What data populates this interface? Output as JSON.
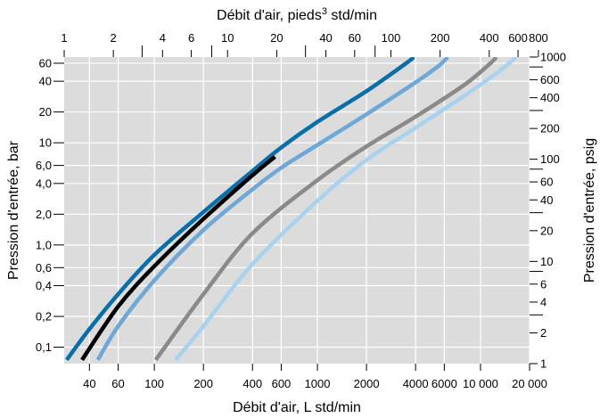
{
  "chart_data": {
    "type": "line",
    "title": "",
    "x_bottom": {
      "label": "Débit d'air, L std/min",
      "scale": "log",
      "range": [
        28,
        20000
      ],
      "ticks": [
        {
          "v": 40,
          "t": "40"
        },
        {
          "v": 60,
          "t": "60"
        },
        {
          "v": 100,
          "t": "100"
        },
        {
          "v": 200,
          "t": "200"
        },
        {
          "v": 400,
          "t": "400"
        },
        {
          "v": 600,
          "t": "600"
        },
        {
          "v": 1000,
          "t": "1000"
        },
        {
          "v": 2000,
          "t": "2000"
        },
        {
          "v": 4000,
          "t": "4000"
        },
        {
          "v": 6000,
          "t": "6000"
        },
        {
          "v": 10000,
          "t": "10 000"
        },
        {
          "v": 20000,
          "t": "20 000"
        }
      ],
      "grid": [
        40,
        60,
        100,
        200,
        400,
        600,
        1000,
        2000,
        4000,
        6000,
        10000,
        20000
      ]
    },
    "x_top": {
      "label_prefix": "Débit d'air, pieds",
      "label_sup": "3",
      "label_suffix": " std/min",
      "scale": "log",
      "range": [
        1,
        706
      ],
      "ticks": [
        {
          "v": 1,
          "t": "1"
        },
        {
          "v": 2,
          "t": "2"
        },
        {
          "v": 4,
          "t": "4"
        },
        {
          "v": 6,
          "t": "6"
        },
        {
          "v": 10,
          "t": "10"
        },
        {
          "v": 20,
          "t": "20"
        },
        {
          "v": 40,
          "t": "40"
        },
        {
          "v": 60,
          "t": "60"
        },
        {
          "v": 100,
          "t": "100"
        },
        {
          "v": 200,
          "t": "200"
        },
        {
          "v": 400,
          "t": "400"
        },
        {
          "v": 600,
          "t": "600"
        },
        {
          "v": 800,
          "t": "800"
        }
      ],
      "minor_ticks": [
        3,
        8,
        30,
        80
      ]
    },
    "y_left": {
      "label": "Pression d'entrée, bar",
      "scale": "log",
      "range": [
        0.069,
        69
      ],
      "ticks": [
        {
          "v": 0.1,
          "t": "0,1"
        },
        {
          "v": 0.2,
          "t": "0,2"
        },
        {
          "v": 0.4,
          "t": "0,4"
        },
        {
          "v": 0.6,
          "t": "0,6"
        },
        {
          "v": 1,
          "t": "1,0"
        },
        {
          "v": 2,
          "t": "2,0"
        },
        {
          "v": 4,
          "t": "4,0"
        },
        {
          "v": 6,
          "t": "6,0"
        },
        {
          "v": 10,
          "t": "10"
        },
        {
          "v": 20,
          "t": "20"
        },
        {
          "v": 40,
          "t": "40"
        },
        {
          "v": 60,
          "t": "60"
        }
      ],
      "grid": [
        0.1,
        0.2,
        0.4,
        0.6,
        1,
        2,
        4,
        6,
        10,
        20,
        40,
        60
      ]
    },
    "y_right": {
      "label": "Pression d'entrée, psig",
      "scale": "log",
      "range": [
        1,
        1000
      ],
      "ticks": [
        {
          "v": 1,
          "t": "1"
        },
        {
          "v": 2,
          "t": "2"
        },
        {
          "v": 4,
          "t": "4"
        },
        {
          "v": 6,
          "t": "6"
        },
        {
          "v": 10,
          "t": "10"
        },
        {
          "v": 20,
          "t": "20"
        },
        {
          "v": 40,
          "t": "40"
        },
        {
          "v": 60,
          "t": "60"
        },
        {
          "v": 100,
          "t": "100"
        },
        {
          "v": 200,
          "t": "200"
        },
        {
          "v": 400,
          "t": "400"
        },
        {
          "v": 600,
          "t": "600"
        },
        {
          "v": 1000,
          "t": "1000"
        }
      ],
      "minor_ticks": [
        3,
        8,
        30,
        80,
        300,
        800
      ]
    },
    "grid": true,
    "background": "#dcdcdc",
    "series": [
      {
        "color": "#0a6ea8",
        "points": [
          [
            29,
            0.075
          ],
          [
            40,
            0.15
          ],
          [
            60,
            0.33
          ],
          [
            100,
            0.8
          ],
          [
            200,
            2.1
          ],
          [
            400,
            5.3
          ],
          [
            600,
            9
          ],
          [
            1000,
            16
          ],
          [
            2000,
            32
          ],
          [
            3500,
            60
          ],
          [
            3900,
            69
          ]
        ]
      },
      {
        "color": "#000000",
        "points": [
          [
            36,
            0.075
          ],
          [
            60,
            0.25
          ],
          [
            100,
            0.62
          ],
          [
            200,
            1.8
          ],
          [
            400,
            4.8
          ],
          [
            550,
            7.3
          ]
        ]
      },
      {
        "color": "#6fa8d6",
        "points": [
          [
            45,
            0.075
          ],
          [
            60,
            0.16
          ],
          [
            100,
            0.45
          ],
          [
            200,
            1.4
          ],
          [
            400,
            3.5
          ],
          [
            600,
            5.7
          ],
          [
            1000,
            9.5
          ],
          [
            2000,
            19
          ],
          [
            4000,
            39
          ],
          [
            5500,
            56
          ],
          [
            6300,
            69
          ]
        ]
      },
      {
        "color": "#8a8a8a",
        "points": [
          [
            102,
            0.075
          ],
          [
            200,
            0.33
          ],
          [
            400,
            1.3
          ],
          [
            1000,
            4.3
          ],
          [
            2000,
            9.2
          ],
          [
            4000,
            18
          ],
          [
            8000,
            37
          ],
          [
            11500,
            60
          ],
          [
            12500,
            69
          ]
        ]
      },
      {
        "color": "#a9d2ee",
        "points": [
          [
            135,
            0.075
          ],
          [
            200,
            0.16
          ],
          [
            400,
            0.65
          ],
          [
            1000,
            2.7
          ],
          [
            2000,
            6.8
          ],
          [
            4000,
            14
          ],
          [
            8000,
            29
          ],
          [
            13000,
            50
          ],
          [
            16500,
            69
          ]
        ]
      }
    ]
  }
}
